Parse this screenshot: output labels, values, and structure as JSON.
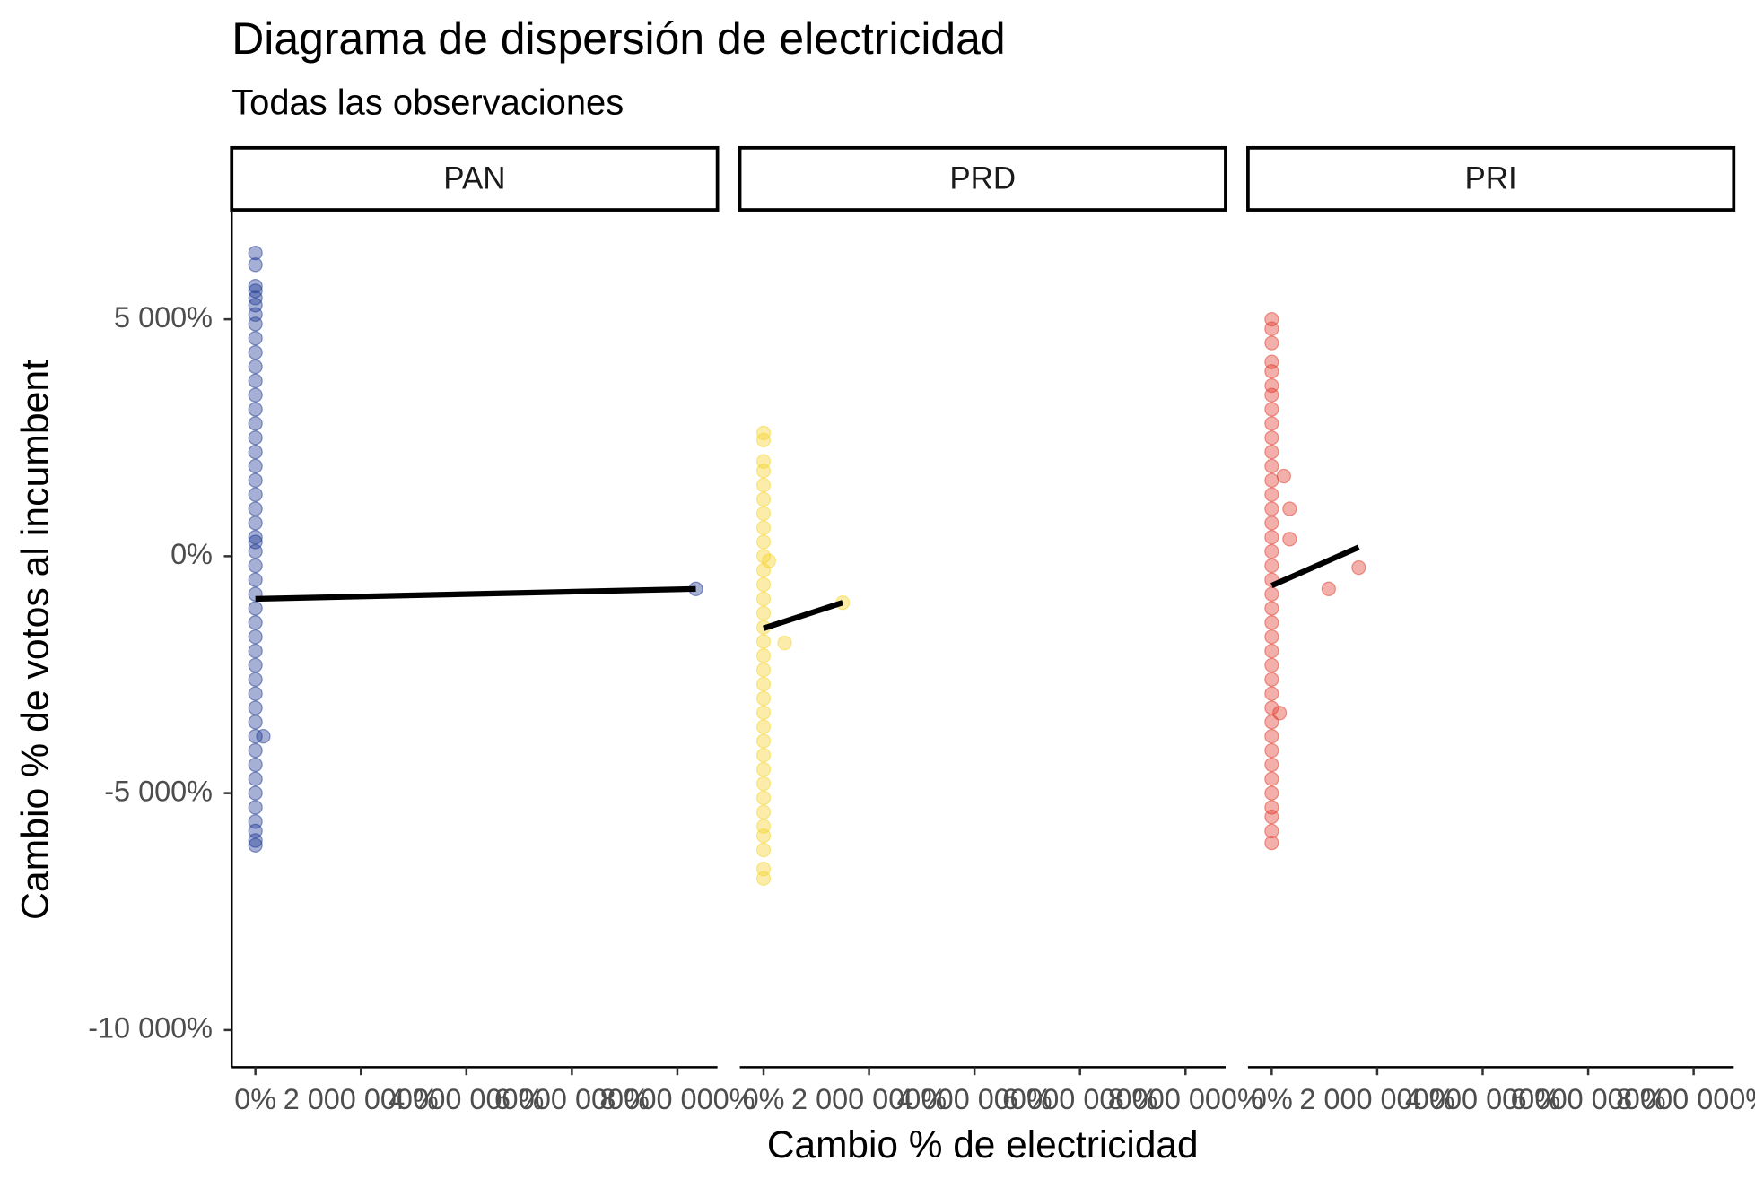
{
  "chart_data": {
    "type": "scatter",
    "title": "Diagrama de dispersión de electricidad",
    "subtitle": "Todas las observaciones",
    "x_label": "Cambio % de electricidad",
    "y_label": "Cambio % de votos al incumbent",
    "xlim": [
      -450000,
      8760000
    ],
    "ylim": [
      -10786,
      7262
    ],
    "xticks": [
      {
        "value": 0,
        "label": "0%"
      },
      {
        "value": 2000000,
        "label": "2 000 000%"
      },
      {
        "value": 4000000,
        "label": "4 000 000%"
      },
      {
        "value": 6000000,
        "label": "6 000 000%"
      },
      {
        "value": 8000000,
        "label": "8 000 000%"
      }
    ],
    "yticks": [
      {
        "value": 5000,
        "label": "5 000%"
      },
      {
        "value": 0,
        "label": "0%"
      },
      {
        "value": -5000,
        "label": "-5 000%"
      },
      {
        "value": -10000,
        "label": "-10 000%"
      }
    ],
    "panels": [
      {
        "name": "PAN",
        "color": "#1f3a93",
        "x": [
          0,
          0,
          0,
          0,
          0,
          0,
          0,
          0,
          0,
          0,
          0,
          0,
          0,
          0,
          0,
          0,
          0,
          0,
          0,
          0,
          0,
          0,
          0,
          0,
          0,
          0,
          0,
          0,
          0,
          0,
          0,
          0,
          0,
          0,
          0,
          0,
          0,
          0,
          0,
          0,
          0,
          0,
          0,
          0,
          0,
          0,
          150000,
          8350000,
          0
        ],
        "y": [
          6400,
          6150,
          5700,
          5600,
          5450,
          5300,
          5100,
          4900,
          4600,
          4300,
          4000,
          3700,
          3400,
          3100,
          2800,
          2500,
          2200,
          1900,
          1600,
          1300,
          1000,
          700,
          400,
          100,
          -200,
          -500,
          -800,
          -1100,
          -1400,
          -1700,
          -2000,
          -2300,
          -2600,
          -2900,
          -3200,
          -3500,
          -3800,
          -4100,
          -4400,
          -4700,
          -5000,
          -5300,
          -5600,
          -5800,
          -6000,
          -6100,
          -3800,
          -690,
          300
        ],
        "trend": {
          "x": [
            0,
            8350000
          ],
          "y": [
            -900,
            -690
          ]
        }
      },
      {
        "name": "PRD",
        "color": "#f5d327",
        "x": [
          0,
          0,
          0,
          0,
          0,
          0,
          0,
          0,
          0,
          0,
          0,
          0,
          0,
          0,
          0,
          0,
          0,
          0,
          0,
          0,
          0,
          0,
          0,
          0,
          0,
          0,
          0,
          0,
          0,
          0,
          0,
          0,
          0,
          1500000,
          400000,
          100000
        ],
        "y": [
          2600,
          2450,
          2000,
          1800,
          1500,
          1200,
          900,
          600,
          300,
          0,
          -300,
          -600,
          -900,
          -1200,
          -1500,
          -1800,
          -2100,
          -2400,
          -2700,
          -3000,
          -3300,
          -3600,
          -3900,
          -4200,
          -4500,
          -4800,
          -5100,
          -5400,
          -5700,
          -5900,
          -6200,
          -6600,
          -6800,
          -980,
          -1830,
          -100
        ],
        "trend": {
          "x": [
            0,
            1500000
          ],
          "y": [
            -1520,
            -980
          ]
        }
      },
      {
        "name": "PRI",
        "color": "#e03a2b",
        "x": [
          0,
          0,
          0,
          0,
          0,
          0,
          0,
          0,
          0,
          0,
          0,
          0,
          0,
          0,
          0,
          0,
          0,
          0,
          0,
          0,
          0,
          0,
          0,
          0,
          0,
          0,
          0,
          0,
          0,
          0,
          0,
          0,
          0,
          0,
          0,
          0,
          0,
          0,
          0,
          1080000,
          1650000,
          340000,
          340000,
          230000,
          150000
        ],
        "y": [
          5000,
          4800,
          4500,
          4100,
          3900,
          3600,
          3400,
          3100,
          2800,
          2500,
          2200,
          1900,
          1600,
          1300,
          1000,
          700,
          400,
          100,
          -200,
          -500,
          -800,
          -1100,
          -1400,
          -1700,
          -2000,
          -2300,
          -2600,
          -2900,
          -3200,
          -3500,
          -3800,
          -4100,
          -4400,
          -4700,
          -5000,
          -5300,
          -5500,
          -5800,
          -6050,
          -690,
          -240,
          1000,
          360,
          1690,
          -3310
        ],
        "trend": {
          "x": [
            0,
            1650000
          ],
          "y": [
            -620,
            190
          ]
        }
      }
    ]
  }
}
